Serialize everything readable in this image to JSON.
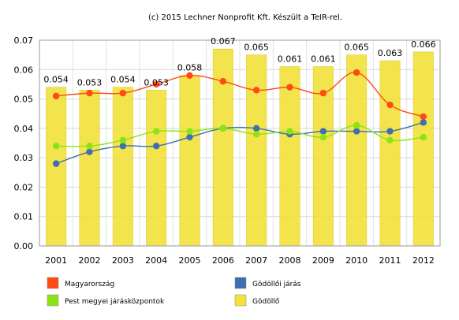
{
  "chart_data": {
    "type": "bar+line",
    "credit": "(c) 2015 Lechner Nonprofit Kft. Készült a TeIR-rel.",
    "categories": [
      "2001",
      "2002",
      "2003",
      "2004",
      "2005",
      "2006",
      "2007",
      "2008",
      "2009",
      "2010",
      "2011",
      "2012"
    ],
    "ylim": [
      0,
      0.07
    ],
    "yticks": [
      "0.00",
      "0.01",
      "0.02",
      "0.03",
      "0.04",
      "0.05",
      "0.06",
      "0.07"
    ],
    "grid": true,
    "legend_position": "bottom",
    "bars": {
      "name": "Gödöllő",
      "color": "#f2e23a",
      "values": [
        0.054,
        0.053,
        0.054,
        0.053,
        0.058,
        0.067,
        0.065,
        0.061,
        0.061,
        0.065,
        0.063,
        0.066
      ],
      "labels": [
        "0.054",
        "0.053",
        "0.054",
        "0.053",
        "0.058",
        "0.067",
        "0.065",
        "0.061",
        "0.061",
        "0.065",
        "0.063",
        "0.066"
      ]
    },
    "series": [
      {
        "name": "Magyarország",
        "color": "#ff4a14",
        "values": [
          0.051,
          0.052,
          0.052,
          0.055,
          0.058,
          0.056,
          0.053,
          0.054,
          0.052,
          0.059,
          0.048,
          0.044
        ]
      },
      {
        "name": "Gödöllői járás",
        "color": "#3f6fb0",
        "values": [
          0.028,
          0.032,
          0.034,
          0.034,
          0.037,
          0.04,
          0.04,
          0.038,
          0.039,
          0.039,
          0.039,
          0.042
        ]
      },
      {
        "name": "Pest megyei járásközpontok",
        "color": "#8ce312",
        "values": [
          0.034,
          0.034,
          0.036,
          0.039,
          0.039,
          0.04,
          0.038,
          0.039,
          0.037,
          0.041,
          0.036,
          0.037
        ]
      }
    ],
    "legend": [
      {
        "name": "Magyarország",
        "color": "#ff4a14"
      },
      {
        "name": "Gödöllői járás",
        "color": "#3f6fb0"
      },
      {
        "name": "Pest megyei járásközpontok",
        "color": "#8ce312"
      },
      {
        "name": "Gödöllő",
        "color": "#f2e23a"
      }
    ]
  }
}
